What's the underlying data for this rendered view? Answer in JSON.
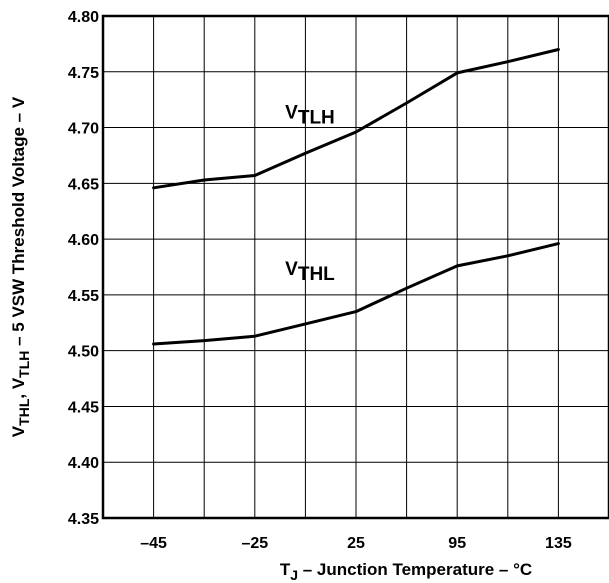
{
  "chart_data": {
    "type": "line",
    "xlabel": {
      "main": "T",
      "sub": "J",
      "rest": " – Junction Temperature – °C"
    },
    "ylabel": [
      {
        "t": "V",
        "sub": false
      },
      {
        "t": "THL",
        "sub": true
      },
      {
        "t": ", V",
        "sub": false
      },
      {
        "t": "TLH",
        "sub": true
      },
      {
        "t": " – 5 VSW Threshold Voltage – V",
        "sub": false
      }
    ],
    "x_ticks": [
      "–45",
      "–25",
      "25",
      "95",
      "135"
    ],
    "x_tick_positions": [
      -45,
      -25,
      25,
      95,
      135
    ],
    "y_ticks": [
      "4.35",
      "4.40",
      "4.45",
      "4.50",
      "4.55",
      "4.60",
      "4.65",
      "4.70",
      "4.75",
      "4.80"
    ],
    "ylim": [
      4.35,
      4.8
    ],
    "grid": true,
    "series": [
      {
        "name": "TLH",
        "label_main": "V",
        "label_sub": "TLH",
        "points": [
          [
            0,
            4.646
          ],
          [
            0.5,
            4.653
          ],
          [
            1,
            4.657
          ],
          [
            1.5,
            4.677
          ],
          [
            2,
            4.696
          ],
          [
            2.5,
            4.722
          ],
          [
            3,
            4.749
          ],
          [
            3.5,
            4.759
          ],
          [
            4,
            4.77
          ]
        ]
      },
      {
        "name": "THL",
        "label_main": "V",
        "label_sub": "THL",
        "points": [
          [
            0,
            4.506
          ],
          [
            0.5,
            4.509
          ],
          [
            1,
            4.513
          ],
          [
            1.5,
            4.524
          ],
          [
            2,
            4.535
          ],
          [
            2.5,
            4.556
          ],
          [
            3,
            4.576
          ],
          [
            3.5,
            4.585
          ],
          [
            4,
            4.596
          ]
        ]
      }
    ]
  }
}
